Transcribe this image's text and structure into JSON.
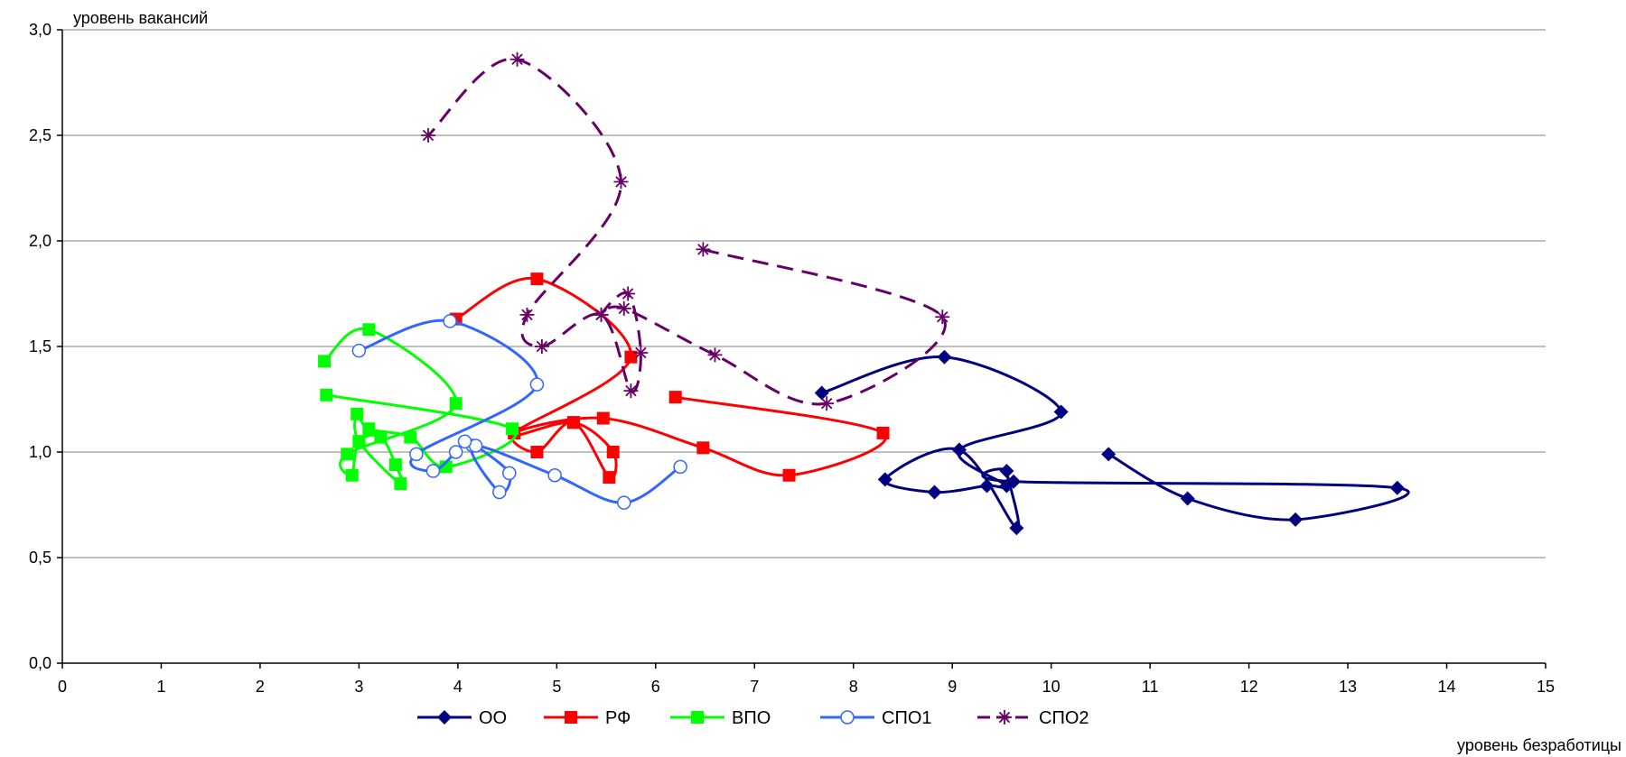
{
  "chart_data": {
    "type": "scatter",
    "ylabel": "уровень вакансий",
    "xlabel": "уровень безработицы",
    "xlim": [
      0,
      15
    ],
    "ylim": [
      0,
      3
    ],
    "x_ticks": [
      "0",
      "1",
      "2",
      "3",
      "4",
      "5",
      "6",
      "7",
      "8",
      "9",
      "10",
      "11",
      "12",
      "13",
      "14",
      "15"
    ],
    "y_ticks": [
      "0,0",
      "0,5",
      "1,0",
      "1,5",
      "2,0",
      "2,5",
      "3,0"
    ],
    "grid": "horizontal",
    "legend_position": "bottom",
    "series": [
      {
        "name": "ОО",
        "color": "#000080",
        "marker": "diamond",
        "dash": "solid",
        "points": [
          [
            10.58,
            0.99
          ],
          [
            11.38,
            0.78
          ],
          [
            12.47,
            0.68
          ],
          [
            13.5,
            0.83
          ],
          [
            9.62,
            0.86
          ],
          [
            9.55,
            0.91
          ],
          [
            9.65,
            0.64
          ],
          [
            9.07,
            1.01
          ],
          [
            8.32,
            0.87
          ],
          [
            8.82,
            0.81
          ],
          [
            9.35,
            0.84
          ],
          [
            9.55,
            0.84
          ],
          [
            9.07,
            1.01
          ],
          [
            10.1,
            1.19
          ],
          [
            8.92,
            1.45
          ],
          [
            7.68,
            1.28
          ]
        ]
      },
      {
        "name": "РФ",
        "color": "#ff0000",
        "marker": "square",
        "dash": "solid",
        "points": [
          [
            6.2,
            1.26
          ],
          [
            8.3,
            1.09
          ],
          [
            7.35,
            0.89
          ],
          [
            6.48,
            1.02
          ],
          [
            5.47,
            1.16
          ],
          [
            4.57,
            1.09
          ],
          [
            4.8,
            1.0
          ],
          [
            5.17,
            1.14
          ],
          [
            5.53,
            0.88
          ],
          [
            5.57,
            1.0
          ],
          [
            5.17,
            1.14
          ],
          [
            4.57,
            1.09
          ],
          [
            5.75,
            1.45
          ],
          [
            4.8,
            1.82
          ],
          [
            3.98,
            1.63
          ]
        ]
      },
      {
        "name": "ВПО",
        "color": "#00ff00",
        "marker": "square",
        "dash": "solid",
        "points": [
          [
            2.67,
            1.27
          ],
          [
            4.55,
            1.11
          ],
          [
            3.88,
            0.93
          ],
          [
            3.52,
            1.07
          ],
          [
            3.1,
            1.11
          ],
          [
            2.98,
            1.18
          ],
          [
            3.0,
            1.05
          ],
          [
            3.42,
            0.85
          ],
          [
            3.37,
            0.94
          ],
          [
            3.22,
            1.07
          ],
          [
            3.0,
            1.05
          ],
          [
            2.93,
            0.89
          ],
          [
            2.88,
            0.99
          ],
          [
            3.98,
            1.23
          ],
          [
            3.1,
            1.58
          ],
          [
            2.65,
            1.43
          ]
        ]
      },
      {
        "name": "СПО1",
        "color": "#3366ff",
        "marker": "circle",
        "dash": "solid",
        "points": [
          [
            6.25,
            0.93
          ],
          [
            5.68,
            0.76
          ],
          [
            4.98,
            0.89
          ],
          [
            4.15,
            1.03
          ],
          [
            4.42,
            0.81
          ],
          [
            4.52,
            0.9
          ],
          [
            4.18,
            1.03
          ],
          [
            4.07,
            1.05
          ],
          [
            3.98,
            1.0
          ],
          [
            3.75,
            0.91
          ],
          [
            3.58,
            0.99
          ],
          [
            4.8,
            1.32
          ],
          [
            3.92,
            1.62
          ],
          [
            3.0,
            1.48
          ]
        ]
      },
      {
        "name": "СПО2",
        "color": "#660066",
        "marker": "asterisk",
        "dash": "dashed",
        "points": [
          [
            6.48,
            1.96
          ],
          [
            8.9,
            1.64
          ],
          [
            7.73,
            1.23
          ],
          [
            6.6,
            1.46
          ],
          [
            5.68,
            1.68
          ],
          [
            5.45,
            1.65
          ],
          [
            5.72,
            1.75
          ],
          [
            5.85,
            1.47
          ],
          [
            5.75,
            1.29
          ],
          [
            5.45,
            1.65
          ],
          [
            4.85,
            1.5
          ],
          [
            4.7,
            1.65
          ],
          [
            5.65,
            2.28
          ],
          [
            4.6,
            2.86
          ],
          [
            3.7,
            2.5
          ]
        ]
      }
    ]
  }
}
